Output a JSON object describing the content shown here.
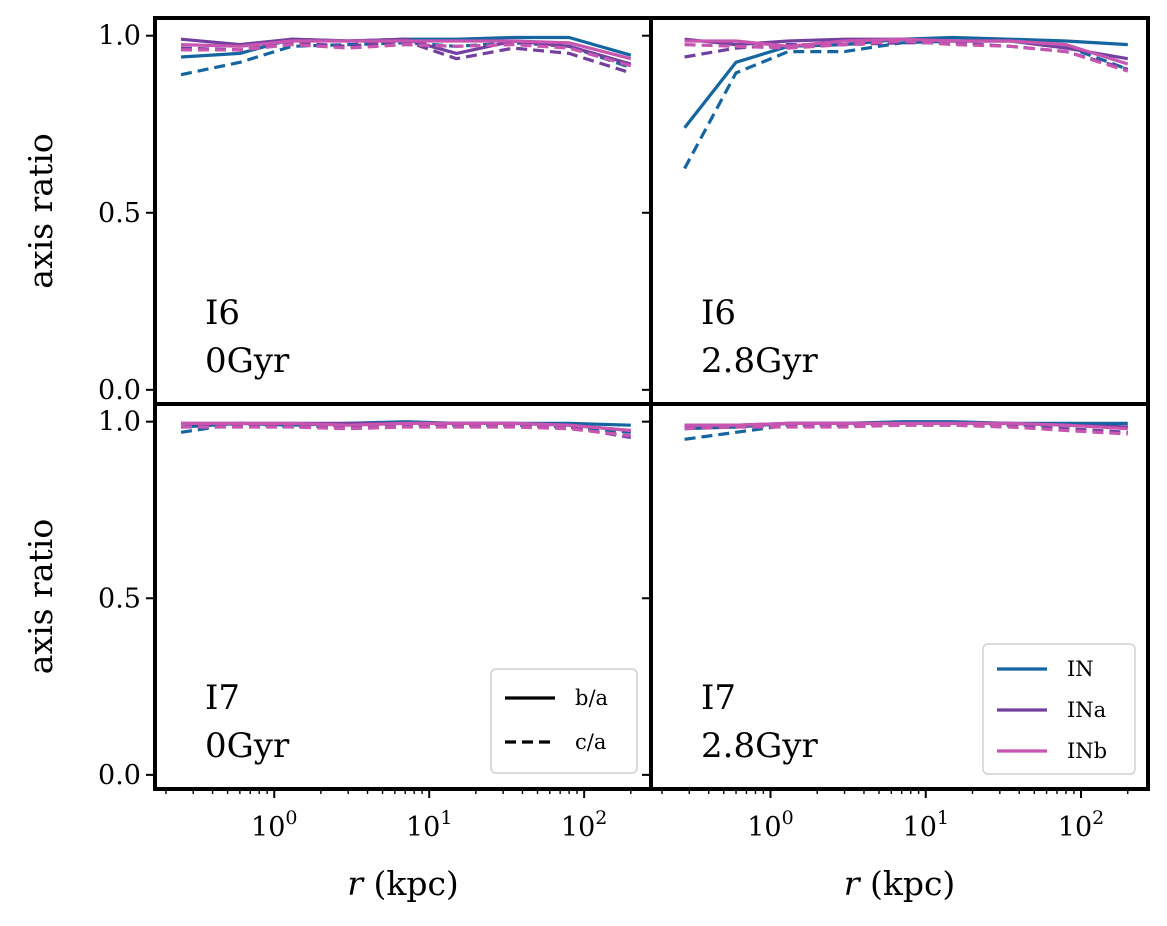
{
  "chart_data": {
    "type": "line",
    "x_scale": "log",
    "xlim": [
      0.17,
      270
    ],
    "ylim": [
      -0.04,
      1.05
    ],
    "y_ticks": [
      "0.0",
      "0.5",
      "1.0"
    ],
    "x_ticks": [
      {
        "value": 1,
        "base": "10",
        "exp": "0"
      },
      {
        "value": 10,
        "base": "10",
        "exp": "1"
      },
      {
        "value": 100,
        "base": "10",
        "exp": "2"
      }
    ],
    "ylabel": "axis ratio",
    "xlabel_var": "r",
    "xlabel_unit": " (kpc)",
    "colors": {
      "IN": "#1565a0",
      "INa": "#7340a0",
      "INb": "#c855b0"
    },
    "legends": {
      "style": [
        {
          "label": "b/a",
          "dash": "solid"
        },
        {
          "label": "c/a",
          "dash": "dashed"
        }
      ],
      "models": [
        {
          "label": "IN",
          "key": "IN"
        },
        {
          "label": "INa",
          "key": "INa"
        },
        {
          "label": "INb",
          "key": "INb"
        }
      ]
    },
    "panels": [
      {
        "label_line1": "I6",
        "label_line2": "0Gyr",
        "legend": "",
        "series": [
          {
            "model": "IN",
            "ratio": "b/a",
            "x": [
              0.25,
              0.6,
              1.3,
              3,
              7,
              15,
              35,
              80,
              200
            ],
            "y": [
              0.94,
              0.95,
              0.99,
              0.985,
              0.99,
              0.99,
              0.995,
              0.995,
              0.945
            ]
          },
          {
            "model": "IN",
            "ratio": "c/a",
            "x": [
              0.25,
              0.6,
              1.3,
              3,
              7,
              15,
              35,
              80,
              200
            ],
            "y": [
              0.89,
              0.925,
              0.97,
              0.975,
              0.98,
              0.97,
              0.98,
              0.97,
              0.91
            ]
          },
          {
            "model": "INa",
            "ratio": "b/a",
            "x": [
              0.25,
              0.6,
              1.3,
              3,
              7,
              15,
              35,
              80,
              200
            ],
            "y": [
              0.99,
              0.975,
              0.99,
              0.985,
              0.99,
              0.95,
              0.985,
              0.97,
              0.92
            ]
          },
          {
            "model": "INa",
            "ratio": "c/a",
            "x": [
              0.25,
              0.6,
              1.3,
              3,
              7,
              15,
              35,
              80,
              200
            ],
            "y": [
              0.965,
              0.96,
              0.98,
              0.97,
              0.985,
              0.935,
              0.965,
              0.95,
              0.895
            ]
          },
          {
            "model": "INb",
            "ratio": "b/a",
            "x": [
              0.25,
              0.6,
              1.3,
              3,
              7,
              15,
              35,
              80,
              200
            ],
            "y": [
              0.975,
              0.97,
              0.985,
              0.985,
              0.985,
              0.985,
              0.985,
              0.98,
              0.935
            ]
          },
          {
            "model": "INb",
            "ratio": "c/a",
            "x": [
              0.25,
              0.6,
              1.3,
              3,
              7,
              15,
              35,
              80,
              200
            ],
            "y": [
              0.96,
              0.96,
              0.975,
              0.965,
              0.975,
              0.97,
              0.975,
              0.965,
              0.915
            ]
          }
        ]
      },
      {
        "label_line1": "I6",
        "label_line2": "2.8Gyr",
        "legend": "",
        "series": [
          {
            "model": "IN",
            "ratio": "b/a",
            "x": [
              0.28,
              0.6,
              1.3,
              3,
              7,
              15,
              35,
              80,
              200
            ],
            "y": [
              0.74,
              0.925,
              0.97,
              0.975,
              0.99,
              0.995,
              0.99,
              0.985,
              0.975
            ]
          },
          {
            "model": "IN",
            "ratio": "c/a",
            "x": [
              0.28,
              0.6,
              1.3,
              3,
              7,
              15,
              35,
              80,
              200
            ],
            "y": [
              0.625,
              0.895,
              0.955,
              0.955,
              0.98,
              0.985,
              0.985,
              0.97,
              0.905
            ]
          },
          {
            "model": "INa",
            "ratio": "b/a",
            "x": [
              0.28,
              0.6,
              1.3,
              3,
              7,
              15,
              35,
              80,
              200
            ],
            "y": [
              0.99,
              0.975,
              0.985,
              0.99,
              0.99,
              0.985,
              0.985,
              0.965,
              0.935
            ]
          },
          {
            "model": "INa",
            "ratio": "c/a",
            "x": [
              0.28,
              0.6,
              1.3,
              3,
              7,
              15,
              35,
              80,
              200
            ],
            "y": [
              0.94,
              0.965,
              0.975,
              0.975,
              0.98,
              0.98,
              0.97,
              0.955,
              0.905
            ]
          },
          {
            "model": "INb",
            "ratio": "b/a",
            "x": [
              0.28,
              0.6,
              1.3,
              3,
              7,
              15,
              35,
              80,
              200
            ],
            "y": [
              0.985,
              0.985,
              0.97,
              0.985,
              0.99,
              0.985,
              0.985,
              0.975,
              0.92
            ]
          },
          {
            "model": "INb",
            "ratio": "c/a",
            "x": [
              0.28,
              0.6,
              1.3,
              3,
              7,
              15,
              35,
              80,
              200
            ],
            "y": [
              0.975,
              0.97,
              0.965,
              0.975,
              0.985,
              0.975,
              0.97,
              0.955,
              0.9
            ]
          }
        ]
      },
      {
        "label_line1": "I7",
        "label_line2": "0Gyr",
        "legend": "style",
        "series": [
          {
            "model": "IN",
            "ratio": "b/a",
            "x": [
              0.25,
              0.6,
              1.3,
              3,
              7,
              15,
              35,
              80,
              200
            ],
            "y": [
              0.985,
              0.995,
              0.99,
              0.995,
              1.0,
              0.995,
              0.995,
              0.995,
              0.99
            ]
          },
          {
            "model": "IN",
            "ratio": "c/a",
            "x": [
              0.25,
              0.6,
              1.3,
              3,
              7,
              15,
              35,
              80,
              200
            ],
            "y": [
              0.97,
              0.995,
              0.985,
              0.99,
              0.995,
              0.99,
              0.99,
              0.985,
              0.97
            ]
          },
          {
            "model": "INa",
            "ratio": "b/a",
            "x": [
              0.25,
              0.6,
              1.3,
              3,
              7,
              15,
              35,
              80,
              200
            ],
            "y": [
              0.995,
              0.995,
              0.995,
              0.995,
              0.995,
              0.995,
              0.995,
              0.99,
              0.975
            ]
          },
          {
            "model": "INa",
            "ratio": "c/a",
            "x": [
              0.25,
              0.6,
              1.3,
              3,
              7,
              15,
              35,
              80,
              200
            ],
            "y": [
              0.985,
              0.99,
              0.99,
              0.985,
              0.99,
              0.99,
              0.99,
              0.985,
              0.955
            ]
          },
          {
            "model": "INb",
            "ratio": "b/a",
            "x": [
              0.25,
              0.6,
              1.3,
              3,
              7,
              15,
              35,
              80,
              200
            ],
            "y": [
              0.995,
              0.995,
              0.995,
              0.99,
              0.995,
              0.995,
              0.995,
              0.99,
              0.975
            ]
          },
          {
            "model": "INb",
            "ratio": "c/a",
            "x": [
              0.25,
              0.6,
              1.3,
              3,
              7,
              15,
              35,
              80,
              200
            ],
            "y": [
              0.985,
              0.985,
              0.985,
              0.98,
              0.985,
              0.985,
              0.985,
              0.98,
              0.96
            ]
          }
        ]
      },
      {
        "label_line1": "I7",
        "label_line2": "2.8Gyr",
        "legend": "models",
        "series": [
          {
            "model": "IN",
            "ratio": "b/a",
            "x": [
              0.28,
              0.6,
              1.3,
              3,
              7,
              15,
              35,
              80,
              200
            ],
            "y": [
              0.98,
              0.985,
              0.995,
              0.995,
              1.0,
              1.0,
              0.995,
              0.995,
              0.995
            ]
          },
          {
            "model": "IN",
            "ratio": "c/a",
            "x": [
              0.28,
              0.6,
              1.3,
              3,
              7,
              15,
              35,
              80,
              200
            ],
            "y": [
              0.95,
              0.97,
              0.99,
              0.99,
              0.995,
              0.995,
              0.99,
              0.99,
              0.985
            ]
          },
          {
            "model": "INa",
            "ratio": "b/a",
            "x": [
              0.28,
              0.6,
              1.3,
              3,
              7,
              15,
              35,
              80,
              200
            ],
            "y": [
              0.99,
              0.99,
              0.995,
              0.995,
              0.995,
              0.995,
              0.995,
              0.99,
              0.985
            ]
          },
          {
            "model": "INa",
            "ratio": "c/a",
            "x": [
              0.28,
              0.6,
              1.3,
              3,
              7,
              15,
              35,
              80,
              200
            ],
            "y": [
              0.985,
              0.985,
              0.99,
              0.99,
              0.99,
              0.99,
              0.985,
              0.98,
              0.97
            ]
          },
          {
            "model": "INb",
            "ratio": "b/a",
            "x": [
              0.28,
              0.6,
              1.3,
              3,
              7,
              15,
              35,
              80,
              200
            ],
            "y": [
              0.99,
              0.99,
              0.995,
              0.995,
              0.995,
              0.995,
              0.995,
              0.99,
              0.98
            ]
          },
          {
            "model": "INb",
            "ratio": "c/a",
            "x": [
              0.28,
              0.6,
              1.3,
              3,
              7,
              15,
              35,
              80,
              200
            ],
            "y": [
              0.98,
              0.985,
              0.985,
              0.985,
              0.99,
              0.99,
              0.985,
              0.975,
              0.965
            ]
          }
        ]
      }
    ]
  }
}
